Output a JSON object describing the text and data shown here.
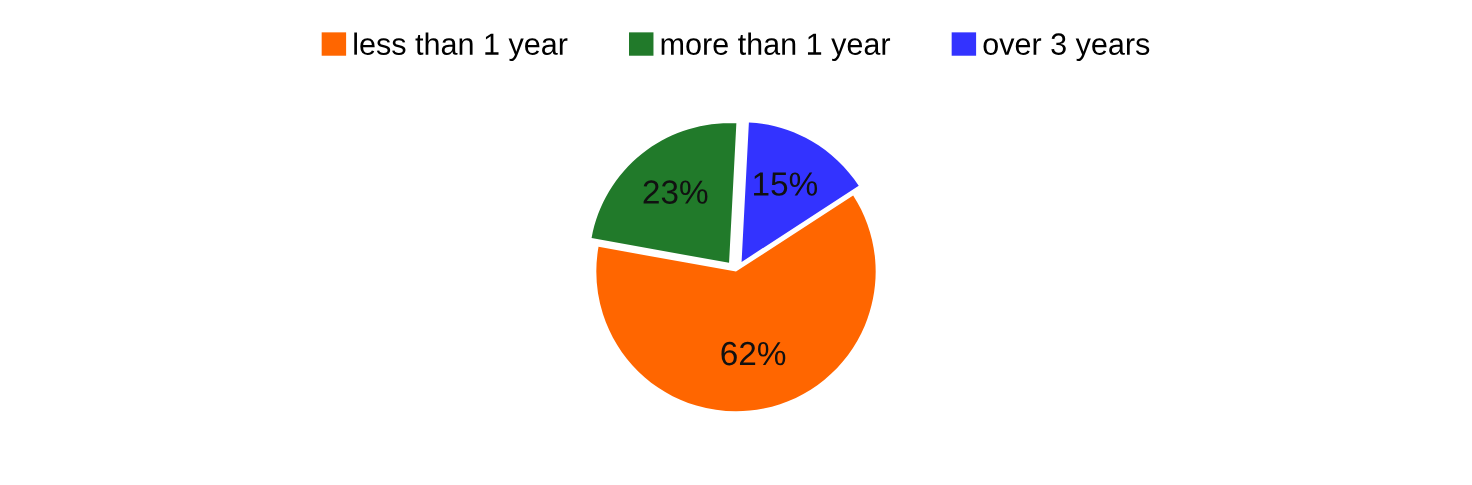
{
  "chart_data": {
    "type": "pie",
    "categories": [
      "less than 1 year",
      "more than 1 year",
      "over 3 years"
    ],
    "values": [
      62,
      23,
      15
    ],
    "colors": [
      "#ff6600",
      "#217a2a",
      "#3333ff"
    ],
    "value_labels": [
      "62%",
      "23%",
      "15%"
    ],
    "legend": "top"
  }
}
